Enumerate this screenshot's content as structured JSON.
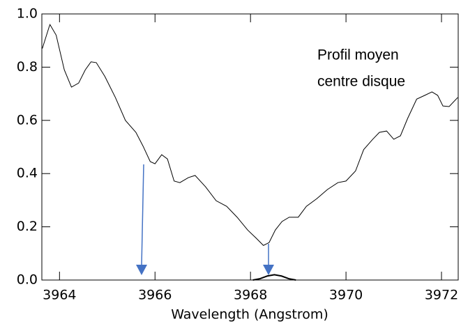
{
  "chart_data": {
    "type": "line",
    "xlabel": "Wavelength (Angstrom)",
    "annotation": [
      "Profil moyen",
      "centre disque"
    ],
    "xlim": [
      3963.63,
      3972.35
    ],
    "ylim": [
      0,
      1
    ],
    "xticks": [
      3964,
      3966,
      3968,
      3970,
      3972
    ],
    "yticks": [
      {
        "value": 0,
        "label": "0.0"
      },
      0.2,
      0.4,
      0.6,
      0.8,
      {
        "value": 1,
        "label": "1.0"
      }
    ],
    "series": [
      {
        "color": "#000000",
        "x": [
          3963.64,
          3963.78,
          3963.8,
          3963.93,
          3964.1,
          3964.25,
          3964.4,
          3964.54,
          3964.66,
          3964.77,
          3964.95,
          3965.17,
          3965.38,
          3965.6,
          3965.75,
          3965.9,
          3966,
          3966.14,
          3966.26,
          3966.4,
          3966.52,
          3966.7,
          3966.84,
          3967.06,
          3967.28,
          3967.5,
          3967.72,
          3967.94,
          3968.12,
          3968.27,
          3968.39,
          3968.52,
          3968.66,
          3968.81,
          3969,
          3969.17,
          3969.39,
          3969.61,
          3969.83,
          3970,
          3970.2,
          3970.37,
          3970.56,
          3970.7,
          3970.85,
          3971,
          3971.14,
          3971.29,
          3971.48,
          3971.65,
          3971.8,
          3971.92,
          3972.03,
          3972.16,
          3972.34
        ],
        "values": [
          0.87,
          0.95,
          0.96,
          0.92,
          0.79,
          0.725,
          0.74,
          0.79,
          0.82,
          0.817,
          0.765,
          0.686,
          0.6,
          0.555,
          0.503,
          0.445,
          0.437,
          0.471,
          0.455,
          0.372,
          0.366,
          0.385,
          0.393,
          0.35,
          0.298,
          0.277,
          0.236,
          0.188,
          0.157,
          0.13,
          0.141,
          0.188,
          0.22,
          0.236,
          0.236,
          0.277,
          0.306,
          0.34,
          0.366,
          0.372,
          0.41,
          0.49,
          0.529,
          0.555,
          0.56,
          0.529,
          0.542,
          0.607,
          0.68,
          0.694,
          0.707,
          0.694,
          0.654,
          0.652,
          0.686
        ]
      },
      {
        "color": "#000000",
        "x": [
          3968.05,
          3968.2,
          3968.35,
          3968.5,
          3968.65,
          3968.8,
          3968.95
        ],
        "values": [
          0,
          0.005,
          0.015,
          0.02,
          0.015,
          0.005,
          0
        ]
      }
    ]
  }
}
